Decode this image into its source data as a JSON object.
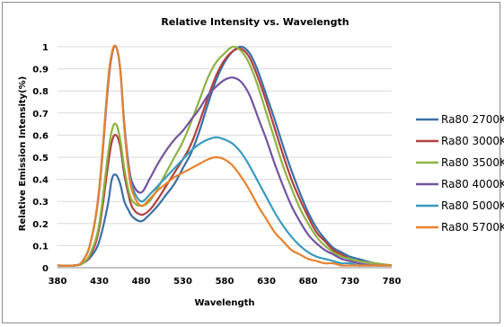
{
  "chart_data": {
    "type": "line",
    "title": "Relative Intensity vs. Wavelength",
    "xlabel": "Wavelength",
    "ylabel": "Relative Emission Intensity(%)",
    "xlim": [
      380,
      780
    ],
    "ylim": [
      0,
      1
    ],
    "x_ticks": [
      "380",
      "430",
      "480",
      "530",
      "580",
      "630",
      "680",
      "730",
      "780"
    ],
    "y_ticks": [
      "0",
      "0.1",
      "0.2",
      "0.3",
      "0.4",
      "0.5",
      "0.6",
      "0.7",
      "0.8",
      "0.9",
      "1"
    ],
    "grid": "horizontal",
    "legend_position": "right",
    "x": [
      380,
      400,
      410,
      420,
      430,
      440,
      445,
      450,
      455,
      460,
      465,
      470,
      480,
      490,
      500,
      510,
      520,
      530,
      540,
      550,
      560,
      570,
      580,
      590,
      600,
      610,
      620,
      630,
      640,
      650,
      660,
      670,
      680,
      690,
      700,
      710,
      720,
      730,
      740,
      760,
      780
    ],
    "series": [
      {
        "name": "Ra80 2700K",
        "color": "#3b6fa6",
        "values": [
          0.01,
          0.01,
          0.02,
          0.05,
          0.12,
          0.28,
          0.4,
          0.42,
          0.38,
          0.3,
          0.26,
          0.23,
          0.21,
          0.24,
          0.28,
          0.33,
          0.38,
          0.45,
          0.52,
          0.62,
          0.74,
          0.85,
          0.93,
          0.98,
          1.0,
          0.97,
          0.89,
          0.78,
          0.67,
          0.55,
          0.44,
          0.34,
          0.25,
          0.18,
          0.13,
          0.09,
          0.07,
          0.05,
          0.04,
          0.02,
          0.01
        ]
      },
      {
        "name": "Ra80 3000K",
        "color": "#b0403e",
        "values": [
          0.01,
          0.01,
          0.02,
          0.06,
          0.18,
          0.45,
          0.57,
          0.6,
          0.55,
          0.42,
          0.33,
          0.27,
          0.24,
          0.26,
          0.31,
          0.37,
          0.43,
          0.49,
          0.56,
          0.66,
          0.77,
          0.87,
          0.94,
          0.98,
          0.99,
          0.95,
          0.86,
          0.75,
          0.63,
          0.51,
          0.4,
          0.31,
          0.23,
          0.16,
          0.12,
          0.08,
          0.06,
          0.04,
          0.03,
          0.02,
          0.01
        ]
      },
      {
        "name": "Ra80 3500K",
        "color": "#8db243",
        "values": [
          0.01,
          0.01,
          0.02,
          0.07,
          0.2,
          0.5,
          0.62,
          0.65,
          0.58,
          0.45,
          0.35,
          0.3,
          0.28,
          0.3,
          0.36,
          0.43,
          0.5,
          0.57,
          0.66,
          0.76,
          0.86,
          0.93,
          0.97,
          1.0,
          0.98,
          0.92,
          0.82,
          0.7,
          0.58,
          0.46,
          0.36,
          0.27,
          0.2,
          0.14,
          0.1,
          0.07,
          0.05,
          0.04,
          0.03,
          0.02,
          0.01
        ]
      },
      {
        "name": "Ra80 4000K",
        "color": "#7254a0",
        "values": [
          0.01,
          0.01,
          0.03,
          0.12,
          0.35,
          0.8,
          0.96,
          1.0,
          0.9,
          0.65,
          0.47,
          0.38,
          0.34,
          0.4,
          0.47,
          0.53,
          0.58,
          0.62,
          0.67,
          0.72,
          0.78,
          0.82,
          0.85,
          0.86,
          0.84,
          0.78,
          0.68,
          0.58,
          0.47,
          0.37,
          0.28,
          0.21,
          0.15,
          0.11,
          0.08,
          0.06,
          0.04,
          0.03,
          0.02,
          0.01,
          0.01
        ]
      },
      {
        "name": "Ra80 5000K",
        "color": "#3a9bbd",
        "values": [
          0.01,
          0.01,
          0.03,
          0.12,
          0.36,
          0.82,
          0.97,
          1.0,
          0.9,
          0.64,
          0.45,
          0.36,
          0.3,
          0.33,
          0.37,
          0.41,
          0.45,
          0.49,
          0.53,
          0.56,
          0.58,
          0.59,
          0.58,
          0.56,
          0.52,
          0.46,
          0.39,
          0.32,
          0.25,
          0.19,
          0.14,
          0.1,
          0.07,
          0.05,
          0.04,
          0.03,
          0.02,
          0.02,
          0.01,
          0.01,
          0.01
        ]
      },
      {
        "name": "Ra80 5700K",
        "color": "#e8822e",
        "values": [
          0.01,
          0.01,
          0.03,
          0.12,
          0.36,
          0.82,
          0.97,
          1.0,
          0.9,
          0.63,
          0.44,
          0.34,
          0.28,
          0.31,
          0.35,
          0.38,
          0.41,
          0.43,
          0.45,
          0.47,
          0.49,
          0.5,
          0.49,
          0.46,
          0.41,
          0.35,
          0.28,
          0.22,
          0.16,
          0.12,
          0.08,
          0.06,
          0.04,
          0.03,
          0.02,
          0.02,
          0.01,
          0.01,
          0.01,
          0.01,
          0.01
        ]
      }
    ]
  }
}
